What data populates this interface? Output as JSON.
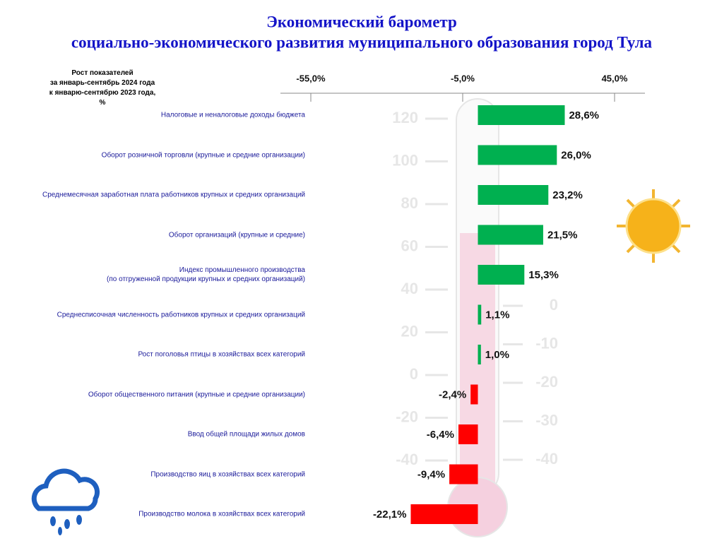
{
  "chart_data": {
    "type": "barh",
    "title": "Экономический барометр",
    "subtitle": "социально-экономического развития муниципального образования город Тула",
    "axis_caption": "Рост показателей\nза  январь-сентябрь 2024 года\nк  январю-сентябрю 2023 года,\n%",
    "categories": [
      "Налоговые и неналоговые доходы бюджета",
      "Оборот розничной торговли (крупные и средние организации)",
      "Среднемесячная заработная плата работников крупных и средних организаций",
      "Оборот организаций (крупные и средние)",
      "Индекс промышленного производства\n(по отгруженной продукции крупных и средних организаций)",
      "Среднесписочная численность работников крупных и средних организаций",
      "Рост поголовья птицы в хозяйствах всех категорий",
      "Оборот общественного питания (крупные и средние организации)",
      "Ввод общей площади жилых домов",
      "Производство яиц в хозяйствах всех категорий",
      "Производство молока в хозяйствах всех категорий"
    ],
    "values": [
      28.6,
      26.0,
      23.2,
      21.5,
      15.3,
      1.1,
      1.0,
      -2.4,
      -6.4,
      -9.4,
      -22.1
    ],
    "value_labels": [
      "28,6%",
      "26,0%",
      "23,2%",
      "21,5%",
      "15,3%",
      "1,1%",
      "1,0%",
      "-2,4%",
      "-6,4%",
      "-9,4%",
      "-22,1%"
    ],
    "positive_color": "#00b050",
    "negative_color": "#ff0000",
    "xlim": [
      -65,
      55
    ],
    "xticks": [
      {
        "value": -55,
        "label": "-55,0%"
      },
      {
        "value": -5,
        "label": "-5,0%"
      },
      {
        "value": 45,
        "label": "45,0%"
      }
    ],
    "thermometer": {
      "left_scale": [
        "120",
        "100",
        "80",
        "60",
        "40",
        "20",
        "0",
        "-20",
        "-40"
      ],
      "right_scale": [
        "0",
        "-10",
        "-20",
        "-30",
        "-40"
      ]
    }
  }
}
